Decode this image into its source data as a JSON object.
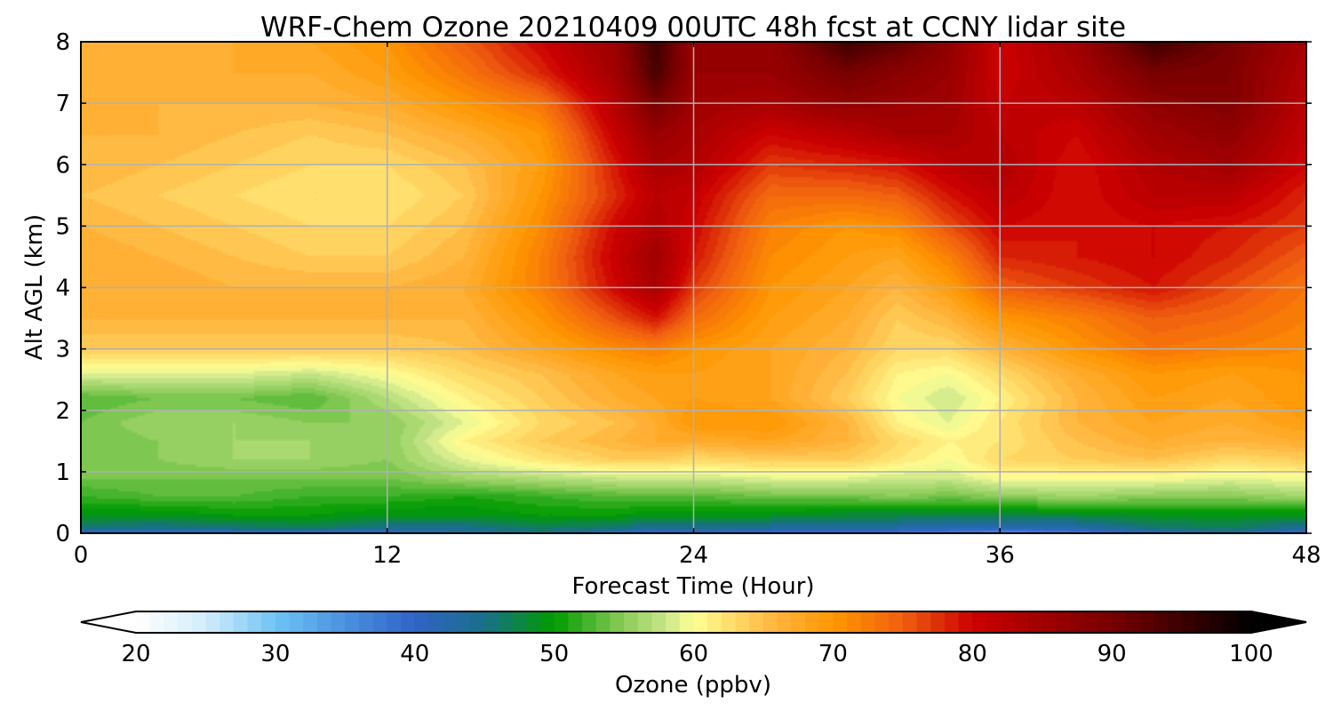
{
  "chart_data": {
    "type": "heatmap",
    "title": "WRF-Chem Ozone  20210409 00UTC 48h fcst at CCNY lidar site",
    "xlabel": "Forecast Time (Hour)",
    "ylabel": "Alt AGL (km)",
    "xlim": [
      0,
      48
    ],
    "ylim": [
      0,
      8
    ],
    "x_ticks": [
      0,
      12,
      24,
      36,
      48
    ],
    "y_ticks": [
      0,
      1,
      2,
      3,
      4,
      5,
      6,
      7,
      8
    ],
    "grid": true,
    "x_hours": [
      0,
      3,
      6,
      9,
      12,
      15,
      18,
      21,
      22.5,
      24,
      27,
      30,
      32,
      34,
      36,
      39,
      42,
      45,
      48
    ],
    "y_km": [
      0,
      0.1,
      0.3,
      0.6,
      0.9,
      1.2,
      1.5,
      1.8,
      2.2,
      2.6,
      3.0,
      3.5,
      4.0,
      4.5,
      5.0,
      5.5,
      6.0,
      6.5,
      7.0,
      7.5,
      8.0
    ],
    "ozone_ppbv": [
      [
        40,
        40,
        41,
        40,
        41,
        43,
        45,
        42,
        40,
        41,
        39,
        38,
        38,
        37,
        35,
        37,
        42,
        44,
        40
      ],
      [
        46,
        45,
        46,
        47,
        45,
        45,
        47,
        46,
        44,
        45,
        44,
        44,
        43,
        42,
        42,
        43,
        46,
        47,
        44
      ],
      [
        49,
        49,
        50,
        50,
        49,
        49,
        50,
        50,
        49,
        49,
        49,
        48,
        48,
        48,
        48,
        48,
        49,
        49,
        49
      ],
      [
        52,
        53,
        53,
        52,
        52,
        51,
        52,
        53,
        53,
        53,
        54,
        54,
        55,
        54,
        55,
        56,
        55,
        55,
        56
      ],
      [
        54,
        54,
        54,
        54,
        54,
        56,
        57,
        58,
        58,
        58,
        59,
        59,
        58,
        58,
        60,
        60,
        60,
        59,
        60
      ],
      [
        55,
        55,
        56,
        56,
        55,
        59,
        62,
        64,
        64,
        63,
        64,
        64,
        62,
        60,
        63,
        64,
        65,
        63,
        64
      ],
      [
        54,
        55,
        56,
        56,
        55,
        61,
        64,
        66,
        67,
        67,
        68,
        66,
        63,
        61,
        62,
        65,
        67,
        66,
        67
      ],
      [
        54,
        56,
        56,
        55,
        55,
        59,
        63,
        65,
        67,
        70,
        70,
        66,
        61,
        59,
        62,
        66,
        68,
        67,
        69
      ],
      [
        53,
        54,
        54,
        53,
        57,
        61,
        64,
        67,
        68,
        69,
        68,
        64,
        60,
        58,
        61,
        66,
        69,
        68,
        70
      ],
      [
        59,
        59,
        59,
        58,
        60,
        63,
        65,
        68,
        69,
        69,
        68,
        65,
        61,
        60,
        63,
        67,
        70,
        69,
        70
      ],
      [
        64,
        64,
        64,
        64,
        64,
        65,
        68,
        71,
        72,
        70,
        68,
        66,
        63,
        63,
        66,
        70,
        73,
        72,
        71
      ],
      [
        66,
        66,
        66,
        66,
        66,
        66,
        70,
        76,
        79,
        74,
        69,
        67,
        64,
        66,
        70,
        72,
        75,
        74,
        72
      ],
      [
        67,
        67,
        66,
        66,
        66,
        67,
        72,
        80,
        84,
        77,
        70,
        68,
        66,
        69,
        75,
        77,
        79,
        76,
        73
      ],
      [
        67,
        66,
        65,
        64,
        64,
        66,
        72,
        81,
        85,
        79,
        71,
        69,
        68,
        72,
        78,
        79,
        80,
        78,
        75
      ],
      [
        66,
        65,
        64,
        63,
        63,
        65,
        71,
        80,
        83,
        80,
        72,
        70,
        71,
        76,
        80,
        79,
        80,
        79,
        77
      ],
      [
        65,
        64,
        63,
        62,
        62,
        64,
        70,
        78,
        82,
        81,
        74,
        74,
        75,
        79,
        82,
        79,
        82,
        82,
        78
      ],
      [
        66,
        65,
        64,
        63,
        63,
        65,
        69,
        79,
        84,
        83,
        77,
        78,
        79,
        82,
        83,
        79,
        83,
        85,
        80
      ],
      [
        66,
        66,
        65,
        64,
        65,
        67,
        70,
        81,
        86,
        84,
        80,
        82,
        84,
        84,
        82,
        80,
        85,
        87,
        81
      ],
      [
        66,
        66,
        66,
        66,
        67,
        70,
        73,
        83,
        90,
        85,
        84,
        87,
        86,
        85,
        81,
        82,
        87,
        89,
        82
      ],
      [
        66,
        66,
        67,
        67,
        69,
        73,
        78,
        85,
        94,
        86,
        86,
        90,
        88,
        86,
        80,
        84,
        90,
        89,
        83
      ],
      [
        66,
        66,
        67,
        68,
        70,
        75,
        80,
        86,
        95,
        86,
        86,
        95,
        92,
        87,
        80,
        85,
        95,
        90,
        84
      ]
    ],
    "colorbar": {
      "label": "Ozone  (ppbv)",
      "min": 20,
      "max": 100,
      "ticks": [
        20,
        30,
        40,
        50,
        60,
        70,
        80,
        90,
        100
      ],
      "extend": "both",
      "stops": [
        {
          "v": 20,
          "color": "#ffffff"
        },
        {
          "v": 25,
          "color": "#d2ecfb"
        },
        {
          "v": 30,
          "color": "#6fc3f3"
        },
        {
          "v": 35,
          "color": "#4a90e0"
        },
        {
          "v": 40,
          "color": "#2f64c6"
        },
        {
          "v": 45,
          "color": "#1a6f8a"
        },
        {
          "v": 50,
          "color": "#009b00"
        },
        {
          "v": 55,
          "color": "#8ccc5a"
        },
        {
          "v": 58,
          "color": "#c8e68a"
        },
        {
          "v": 60,
          "color": "#ffff96"
        },
        {
          "v": 63,
          "color": "#ffd966"
        },
        {
          "v": 66,
          "color": "#ffb43c"
        },
        {
          "v": 70,
          "color": "#ff9600"
        },
        {
          "v": 75,
          "color": "#f06010"
        },
        {
          "v": 80,
          "color": "#cc0000"
        },
        {
          "v": 85,
          "color": "#a00000"
        },
        {
          "v": 90,
          "color": "#780000"
        },
        {
          "v": 95,
          "color": "#3c0000"
        },
        {
          "v": 100,
          "color": "#000000"
        }
      ]
    }
  }
}
